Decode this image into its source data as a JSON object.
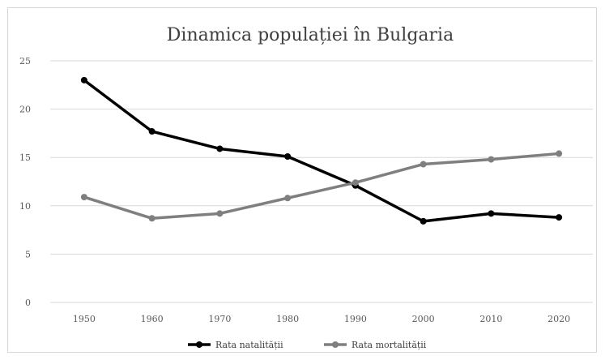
{
  "chart_data": {
    "type": "line",
    "title": "Dinamica populației în Bulgaria",
    "xlabel": "",
    "ylabel": "",
    "categories": [
      "1950",
      "1960",
      "1970",
      "1980",
      "1990",
      "2000",
      "2010",
      "2020"
    ],
    "ylim": [
      0,
      25
    ],
    "yticks": [
      "0",
      "5",
      "10",
      "15",
      "20",
      "25"
    ],
    "grid": true,
    "legend_position": "bottom",
    "series": [
      {
        "name": "Rata natalității",
        "color": "#000000",
        "values": [
          23.0,
          17.7,
          15.9,
          15.1,
          12.1,
          8.4,
          9.2,
          8.8
        ]
      },
      {
        "name": "Rata mortalității",
        "color": "#7f7f7f",
        "values": [
          10.9,
          8.7,
          9.2,
          10.8,
          12.4,
          14.3,
          14.8,
          15.4
        ]
      }
    ]
  }
}
